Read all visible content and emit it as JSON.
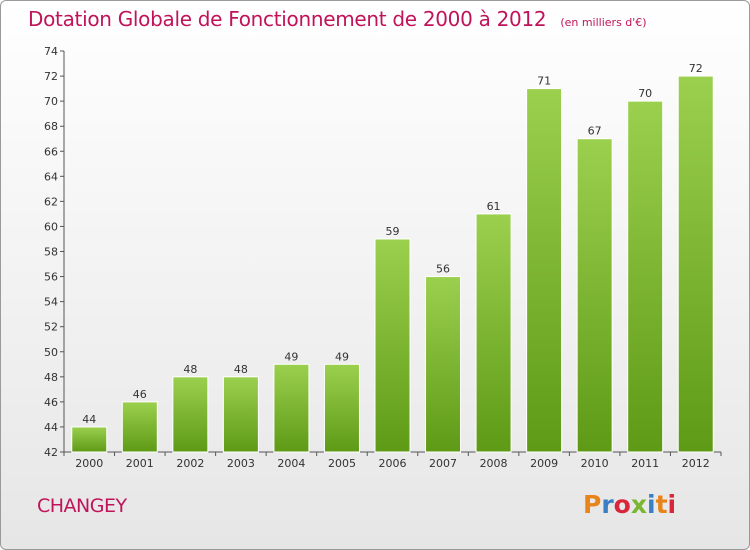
{
  "chart_data": {
    "type": "bar",
    "title": "Dotation Globale de Fonctionnement de 2000 à 2012",
    "subtitle": "(en milliers d'€)",
    "categories": [
      "2000",
      "2001",
      "2002",
      "2003",
      "2004",
      "2005",
      "2006",
      "2007",
      "2008",
      "2009",
      "2010",
      "2011",
      "2012"
    ],
    "values": [
      44,
      46,
      48,
      48,
      49,
      49,
      59,
      56,
      61,
      71,
      67,
      70,
      72
    ],
    "data_labels": [
      "44",
      "46",
      "48",
      "48",
      "49",
      "49",
      "59",
      "56",
      "61",
      "71",
      "67",
      "70",
      "72"
    ],
    "ylim": [
      42,
      74
    ],
    "yticks": [
      42,
      44,
      46,
      48,
      50,
      52,
      54,
      56,
      58,
      60,
      62,
      64,
      66,
      68,
      70,
      72,
      74
    ],
    "grid": false,
    "bar_color": "#7ab631"
  },
  "footer": {
    "commune": "CHANGEY",
    "brand": "Proxiti",
    "brand_colors": [
      "#e8841a",
      "#3a7fc4",
      "#d9263a",
      "#7ab631",
      "#3a7fc4",
      "#e8841a",
      "#d9263a"
    ]
  }
}
